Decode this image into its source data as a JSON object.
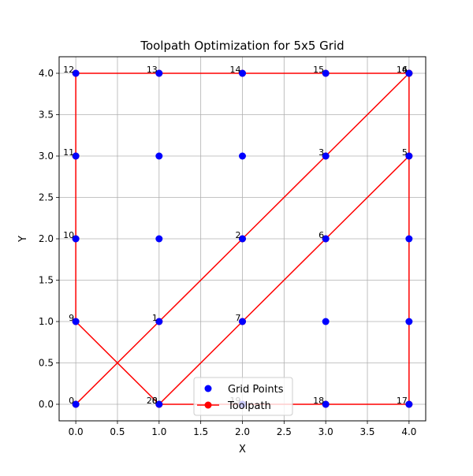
{
  "chart_data": {
    "type": "scatter",
    "title": "Toolpath Optimization for 5x5 Grid",
    "xlabel": "X",
    "ylabel": "Y",
    "xlim": [
      -0.2,
      4.2
    ],
    "ylim": [
      -0.2,
      4.2
    ],
    "x_ticks": [
      "0.0",
      "0.5",
      "1.0",
      "1.5",
      "2.0",
      "2.5",
      "3.0",
      "3.5",
      "4.0"
    ],
    "y_ticks": [
      "0.0",
      "0.5",
      "1.0",
      "1.5",
      "2.0",
      "2.5",
      "3.0",
      "3.5",
      "4.0"
    ],
    "grid": true,
    "legend_position": "bottom-center",
    "series": [
      {
        "name": "Grid Points",
        "color": "#0000ff",
        "marker": "circle",
        "points": [
          [
            0,
            0
          ],
          [
            0,
            1
          ],
          [
            0,
            2
          ],
          [
            0,
            3
          ],
          [
            0,
            4
          ],
          [
            1,
            0
          ],
          [
            1,
            1
          ],
          [
            1,
            2
          ],
          [
            1,
            3
          ],
          [
            1,
            4
          ],
          [
            2,
            0
          ],
          [
            2,
            1
          ],
          [
            2,
            2
          ],
          [
            2,
            3
          ],
          [
            2,
            4
          ],
          [
            3,
            0
          ],
          [
            3,
            1
          ],
          [
            3,
            2
          ],
          [
            3,
            3
          ],
          [
            3,
            4
          ],
          [
            4,
            0
          ],
          [
            4,
            1
          ],
          [
            4,
            2
          ],
          [
            4,
            3
          ],
          [
            4,
            4
          ]
        ]
      },
      {
        "name": "Toolpath",
        "color": "#ff0000",
        "marker": "circle-line",
        "points": [
          [
            0,
            0
          ],
          [
            1,
            1
          ],
          [
            2,
            2
          ],
          [
            3,
            3
          ],
          [
            4,
            4
          ],
          [
            4,
            3
          ],
          [
            3,
            2
          ],
          [
            2,
            1
          ],
          [
            1,
            0
          ],
          [
            0,
            1
          ],
          [
            0,
            2
          ],
          [
            0,
            3
          ],
          [
            0,
            4
          ],
          [
            1,
            4
          ],
          [
            2,
            4
          ],
          [
            3,
            4
          ],
          [
            4,
            4
          ],
          [
            4,
            0
          ],
          [
            3,
            0
          ],
          [
            2,
            0
          ],
          [
            1,
            0
          ]
        ]
      }
    ],
    "annotations": [
      {
        "text": "0",
        "x": 0,
        "y": 0
      },
      {
        "text": "1",
        "x": 1,
        "y": 1
      },
      {
        "text": "2",
        "x": 2,
        "y": 2
      },
      {
        "text": "3",
        "x": 3,
        "y": 3
      },
      {
        "text": "4",
        "x": 4,
        "y": 4
      },
      {
        "text": "5",
        "x": 4,
        "y": 3
      },
      {
        "text": "6",
        "x": 3,
        "y": 2
      },
      {
        "text": "7",
        "x": 2,
        "y": 1
      },
      {
        "text": "8",
        "x": 1,
        "y": 0
      },
      {
        "text": "9",
        "x": 0,
        "y": 1
      },
      {
        "text": "10",
        "x": 0,
        "y": 2
      },
      {
        "text": "11",
        "x": 0,
        "y": 3
      },
      {
        "text": "12",
        "x": 0,
        "y": 4
      },
      {
        "text": "13",
        "x": 1,
        "y": 4
      },
      {
        "text": "14",
        "x": 2,
        "y": 4
      },
      {
        "text": "15",
        "x": 3,
        "y": 4
      },
      {
        "text": "16",
        "x": 4,
        "y": 4
      },
      {
        "text": "17",
        "x": 4,
        "y": 0
      },
      {
        "text": "18",
        "x": 3,
        "y": 0
      },
      {
        "text": "19",
        "x": 2,
        "y": 0
      },
      {
        "text": "20",
        "x": 1,
        "y": 0
      }
    ]
  }
}
